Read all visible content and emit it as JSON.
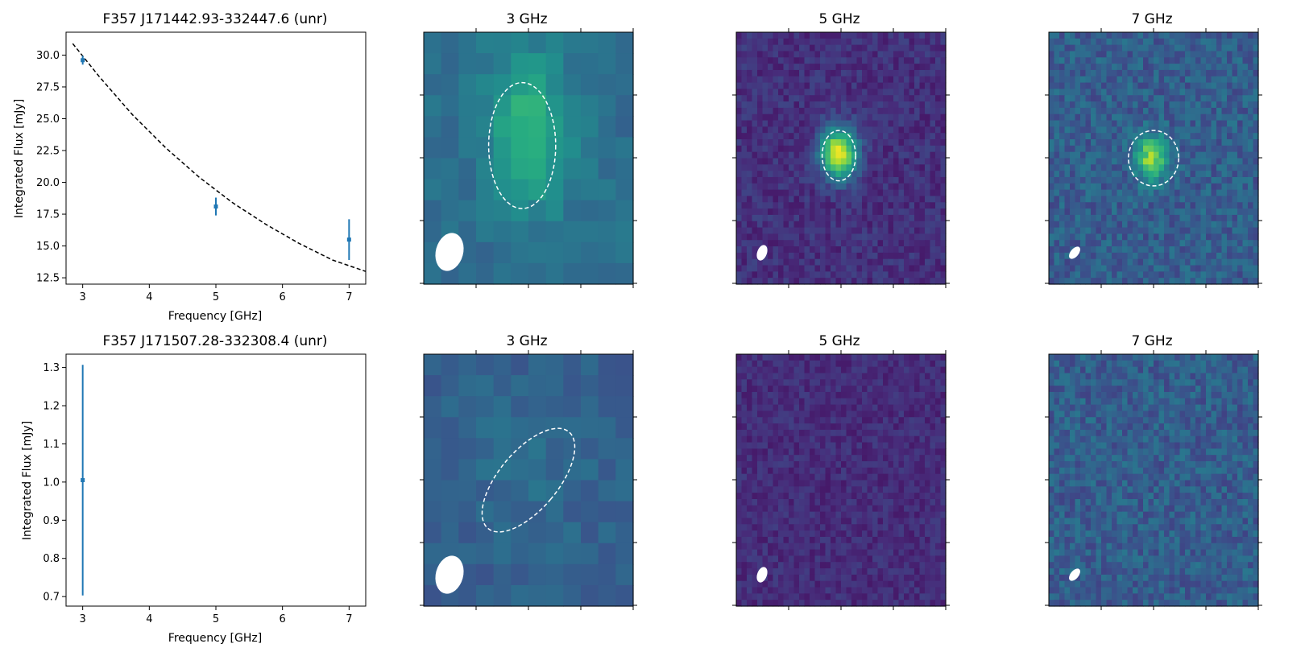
{
  "figure": {
    "background": "#ffffff",
    "errorbar_color": "#1f77b4",
    "fit_color": "#000000",
    "ellipse_color": "#ffffff"
  },
  "chart_data": [
    {
      "type": "scatter",
      "title": "F357 J171442.93-332447.6 (unr)",
      "xlabel": "Frequency [GHz]",
      "ylabel": "Integrated Flux [mJy]",
      "xlim": [
        2.75,
        7.25
      ],
      "ylim": [
        12.0,
        31.8
      ],
      "xticks": [
        3,
        4,
        5,
        6,
        7
      ],
      "yticks": [
        12.5,
        15.0,
        17.5,
        20.0,
        22.5,
        25.0,
        27.5,
        30.0
      ],
      "tick_format": 1,
      "points": [
        {
          "x": 3,
          "y": 29.6,
          "yerr": 0.35
        },
        {
          "x": 5,
          "y": 18.1,
          "yerr": 0.7
        },
        {
          "x": 7,
          "y": 15.5,
          "yerr": 1.6
        }
      ],
      "fit": {
        "style": "dashed",
        "model": "power-law",
        "x": [
          2.85,
          3.25,
          3.75,
          4.25,
          4.75,
          5.25,
          5.75,
          6.25,
          6.75,
          7.25
        ],
        "y": [
          30.9,
          28.3,
          25.3,
          22.7,
          20.4,
          18.4,
          16.7,
          15.2,
          13.9,
          13.0
        ]
      }
    },
    {
      "type": "heatmap",
      "title": "3 GHz",
      "colormap": "viridis",
      "source_ellipse": {
        "dashed": true
      },
      "beam": "white ellipse, lower-left"
    },
    {
      "type": "heatmap",
      "title": "5 GHz",
      "colormap": "viridis",
      "source_ellipse": {
        "dashed": true
      },
      "beam": "white ellipse, lower-left"
    },
    {
      "type": "heatmap",
      "title": "7 GHz",
      "colormap": "viridis",
      "source_ellipse": {
        "dashed": true
      },
      "beam": "white ellipse, lower-left"
    },
    {
      "type": "scatter",
      "title": "F357 J171507.28-332308.4 (unr)",
      "xlabel": "Frequency [GHz]",
      "ylabel": "Integrated Flux [mJy]",
      "xlim": [
        2.75,
        7.25
      ],
      "ylim": [
        0.675,
        1.335
      ],
      "xticks": [
        3,
        4,
        5,
        6,
        7
      ],
      "yticks": [
        0.7,
        0.8,
        0.9,
        1.0,
        1.1,
        1.2,
        1.3
      ],
      "tick_format": 1,
      "points": [
        {
          "x": 3,
          "y": 1.005,
          "yerr": 0.302
        }
      ]
    },
    {
      "type": "heatmap",
      "title": "3 GHz",
      "colormap": "viridis",
      "source_ellipse": {
        "dashed": true
      },
      "beam": "white ellipse, lower-left"
    },
    {
      "type": "heatmap",
      "title": "5 GHz",
      "colormap": "viridis",
      "beam": "white ellipse, lower-left"
    },
    {
      "type": "heatmap",
      "title": "7 GHz",
      "colormap": "viridis",
      "beam": "white ellipse, lower-left"
    }
  ]
}
